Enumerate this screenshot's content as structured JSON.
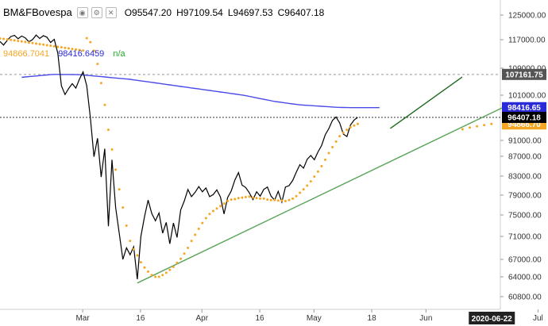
{
  "header": {
    "symbol": "BM&FBovespa",
    "o_label": "O",
    "o_value": "95547.20",
    "h_label": "H",
    "h_value": "97109.54",
    "l_label": "L",
    "l_value": "94697.53",
    "c_label": "C",
    "c_value": "96407.18"
  },
  "indicator_values": {
    "sar": "94866.7041",
    "ma": "98416.6459",
    "na": "n/a"
  },
  "colors": {
    "price": "#000000",
    "sar": "#f5a623",
    "ma": "#4a4ae8",
    "trend_dark": "#1f6b1f",
    "trend_light": "#5aa55a",
    "tag_price": "#000000",
    "tag_ma": "#2a2ad8",
    "tag_sar": "#f5a623",
    "tag_level": "#555555"
  },
  "chart_data": {
    "type": "line",
    "ylim": [
      59000,
      127000
    ],
    "yticks": [
      "125000.00",
      "117000.00",
      "109000.00",
      "101000.00",
      "91000.00",
      "87000.00",
      "83000.00",
      "79000.00",
      "75000.00",
      "71000.00",
      "67000.00",
      "64000.00",
      "60800.00"
    ],
    "ytick_values": [
      125000,
      117000,
      109000,
      101000,
      91000,
      87000,
      83000,
      79000,
      75000,
      71000,
      67000,
      64000,
      60800
    ],
    "xticks": [
      "Mar",
      "16",
      "Apr",
      "16",
      "May",
      "18",
      "Jun",
      "Jul"
    ],
    "xtick_index": [
      22,
      38,
      55,
      71,
      86,
      102,
      117,
      148
    ],
    "x_label_current": "2020-06-22",
    "x_current_index": 135,
    "series": [
      {
        "name": "BM&FBovespa",
        "kind": "price",
        "values": [
          116500,
          115500,
          116800,
          118000,
          118400,
          117300,
          118200,
          117600,
          116400,
          117000,
          118500,
          117400,
          118300,
          117800,
          116200,
          117100,
          113200,
          103800,
          101200,
          103000,
          104400,
          103100,
          105800,
          107900,
          103800,
          96300,
          86900,
          91500,
          82800,
          88900,
          72900,
          86300,
          76500,
          71500,
          67000,
          69000,
          67800,
          69200,
          63600,
          71000,
          74700,
          78000,
          75300,
          73900,
          75400,
          71600,
          73600,
          69700,
          73500,
          70800,
          76000,
          77800,
          80200,
          78700,
          79600,
          80800,
          79700,
          80500,
          78700,
          79100,
          80100,
          78600,
          75200,
          78500,
          79900,
          82200,
          83700,
          81100,
          80600,
          79500,
          78100,
          79700,
          78800,
          80200,
          80700,
          78800,
          78000,
          79800,
          77600,
          80700,
          81000,
          82100,
          83800,
          85300,
          84600,
          86400,
          87200,
          86300,
          88100,
          89700,
          92300,
          93800,
          95700,
          96500,
          95100,
          92500,
          91900,
          94600,
          95800,
          96407
        ]
      },
      {
        "name": "Parabolic SAR",
        "kind": "sar",
        "values": [
          94867,
          94867,
          94867,
          94867,
          94867,
          94867,
          94867,
          94867,
          94867,
          94867,
          94867,
          94867,
          94867,
          94867,
          94867,
          94867,
          94867,
          94867,
          94867,
          94867,
          94867,
          94867,
          94867,
          94867,
          117500,
          116300,
          113900,
          110200,
          104600,
          99000,
          93500,
          88700,
          84300,
          80200,
          76500,
          73000,
          70200,
          68800,
          67700,
          66500,
          65600,
          64900,
          64300,
          64000,
          64000,
          64300,
          64700,
          65200,
          65700,
          66400,
          67100,
          68000,
          69000,
          70200,
          71300,
          72400,
          73500,
          74400,
          75200,
          75800,
          76300,
          76800,
          77300,
          77800,
          78100,
          78200,
          78400,
          78500,
          78600,
          78700,
          78500,
          78400,
          78300,
          78300,
          78100,
          78000,
          78000,
          77900,
          77900,
          77800,
          78000,
          78300,
          78800,
          79500,
          80200,
          81000,
          81900,
          82900,
          83900,
          85000,
          86300,
          87800,
          89300,
          90700,
          92000,
          92800,
          93500,
          94100,
          94500,
          94867
        ]
      },
      {
        "name": "Moving Average",
        "kind": "ma",
        "values": [
          106300,
          106400,
          106500,
          106600,
          106700,
          106800,
          106900,
          107000,
          107100,
          107161,
          107160,
          107150,
          107140,
          107130,
          107120,
          107100,
          107060,
          107000,
          106900,
          106800,
          106700,
          106600,
          106500,
          106400,
          106300,
          106200,
          106100,
          106000,
          105900,
          105800,
          105700,
          105550,
          105400,
          105250,
          105100,
          104950,
          104800,
          104650,
          104500,
          104350,
          104200,
          104050,
          103900,
          103750,
          103600,
          103450,
          103300,
          103150,
          103000,
          102850,
          102700,
          102550,
          102400,
          102250,
          102100,
          101950,
          101800,
          101650,
          101500,
          101350,
          101200,
          101050,
          100900,
          100750,
          100600,
          100450,
          100300,
          100150,
          100000,
          99850,
          99700,
          99600,
          99500,
          99400,
          99300,
          99200,
          99100,
          99000,
          98950,
          98900,
          98850,
          98800,
          98750,
          98700,
          98650,
          98600,
          98550,
          98500,
          98480,
          98460,
          98440,
          98430,
          98420,
          98417,
          98417,
          98417,
          98417,
          98417,
          98417,
          98417
        ]
      }
    ],
    "price_tag": "96407.18",
    "ma_tag": "98416.65",
    "sar_tag": "94866.70",
    "level_tag": "107161.75"
  }
}
